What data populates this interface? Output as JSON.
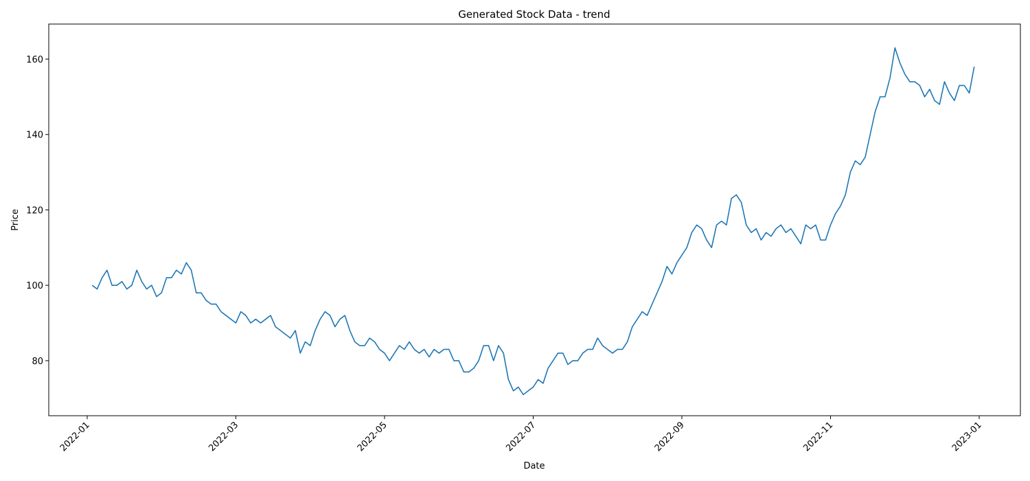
{
  "chart_data": {
    "type": "line",
    "title": "Generated Stock Data - trend",
    "x_label": "Date",
    "y_label": "Price",
    "color": "#1f77b4",
    "categories": [
      "2022-01",
      null,
      null,
      null,
      null,
      null,
      null,
      null,
      null,
      null,
      null,
      null,
      null,
      null,
      null,
      null,
      null,
      null,
      null,
      null,
      null,
      null,
      null,
      null,
      null,
      null,
      null,
      null,
      null,
      null,
      "2022-03",
      null,
      null,
      null,
      null,
      null,
      null,
      null,
      null,
      null,
      null,
      null,
      null,
      null,
      null,
      null,
      null,
      null,
      null,
      null,
      null,
      null,
      null,
      null,
      null,
      null,
      null,
      null,
      null,
      null,
      "2022-05",
      null,
      null,
      null,
      null,
      null,
      null,
      null,
      null,
      null,
      null,
      null,
      null,
      null,
      null,
      null,
      null,
      null,
      null,
      null,
      null,
      null,
      null,
      null,
      null,
      null,
      null,
      null,
      null,
      null,
      "2022-07",
      null,
      null,
      null,
      null,
      null,
      null,
      null,
      null,
      null,
      null,
      null,
      null,
      null,
      null,
      null,
      null,
      null,
      null,
      null,
      null,
      null,
      null,
      null,
      null,
      null,
      null,
      null,
      null,
      null,
      "2022-09",
      null,
      null,
      null,
      null,
      null,
      null,
      null,
      null,
      null,
      null,
      null,
      null,
      null,
      null,
      null,
      null,
      null,
      null,
      null,
      null,
      null,
      null,
      null,
      null,
      null,
      null,
      null,
      null,
      null,
      "2022-11",
      null,
      null,
      null,
      null,
      null,
      null,
      null,
      null,
      null,
      null,
      null,
      null,
      null,
      null,
      null,
      null,
      null,
      null,
      null,
      null,
      null,
      null,
      null,
      null,
      null,
      null,
      null,
      null,
      null,
      "2023-01"
    ],
    "values": [
      null,
      100,
      99,
      102,
      104,
      100,
      100,
      101,
      99,
      100,
      104,
      101,
      99,
      100,
      97,
      98,
      102,
      102,
      104,
      103,
      106,
      104,
      98,
      98,
      96,
      95,
      95,
      93,
      92,
      91,
      90,
      93,
      92,
      90,
      91,
      90,
      91,
      92,
      89,
      88,
      87,
      86,
      88,
      82,
      85,
      84,
      88,
      91,
      93,
      92,
      89,
      91,
      92,
      88,
      85,
      84,
      84,
      86,
      85,
      83,
      82,
      80,
      82,
      84,
      83,
      85,
      83,
      82,
      83,
      81,
      83,
      82,
      83,
      83,
      80,
      80,
      77,
      77,
      78,
      80,
      84,
      84,
      80,
      84,
      82,
      75,
      72,
      73,
      71,
      72,
      73,
      75,
      74,
      78,
      80,
      82,
      82,
      79,
      80,
      80,
      82,
      83,
      83,
      86,
      84,
      83,
      82,
      83,
      83,
      85,
      89,
      91,
      93,
      92,
      95,
      98,
      101,
      105,
      103,
      106,
      108,
      110,
      114,
      116,
      115,
      112,
      110,
      116,
      117,
      116,
      123,
      124,
      122,
      116,
      114,
      115,
      112,
      114,
      113,
      115,
      116,
      114,
      115,
      113,
      111,
      116,
      115,
      116,
      112,
      112,
      116,
      119,
      121,
      124,
      130,
      133,
      132,
      134,
      140,
      146,
      150,
      150,
      155,
      163,
      159,
      156,
      154,
      154,
      153,
      150,
      152,
      149,
      148,
      154,
      151,
      149,
      153,
      153,
      151,
      158,
      null
    ],
    "ylim": [
      65.4,
      169.3
    ],
    "yticks": [
      80,
      100,
      120,
      140,
      160
    ]
  }
}
